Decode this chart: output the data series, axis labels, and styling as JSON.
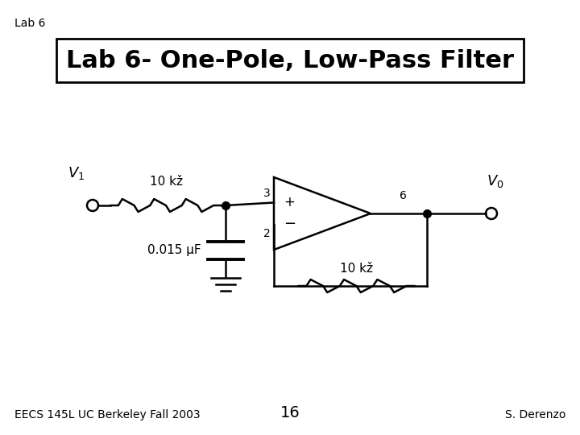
{
  "title": "Lab 6- One-Pole, Low-Pass Filter",
  "lab_label": "Lab 6",
  "footer_left": "EECS 145L UC Berkeley Fall 2003",
  "footer_center": "16",
  "footer_right": "S. Derenzo",
  "background_color": "#ffffff",
  "title_fontsize": 22,
  "circuit": {
    "V1_label": "$V_1$",
    "V0_label": "$V_0$",
    "R1_label": "10 kž",
    "C1_label": "0.015 μF",
    "R2_label": "10 kž",
    "pin3_label": "3",
    "pin2_label": "2",
    "pin6_label": "6",
    "plus_label": "+",
    "minus_label": "−"
  }
}
